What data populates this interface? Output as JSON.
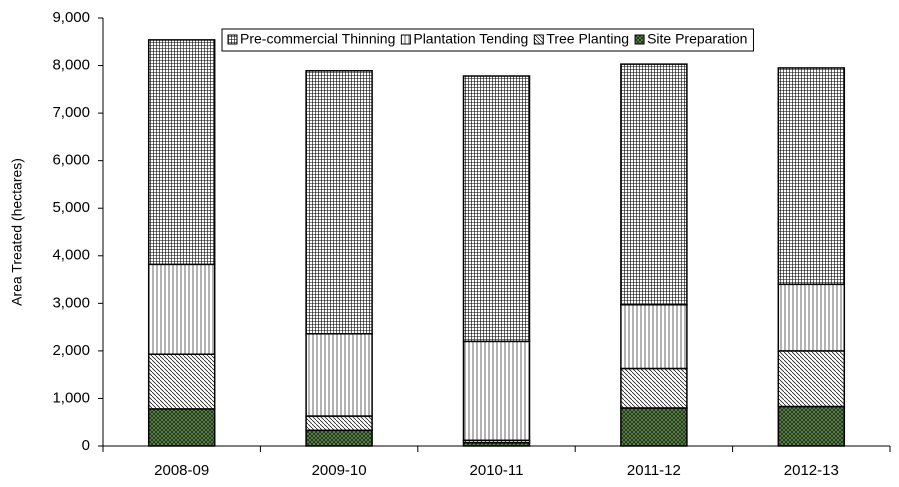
{
  "chart_data": {
    "type": "bar",
    "stacked": true,
    "y_label": "Area Treated (hectares)",
    "categories": [
      "2008-09",
      "2009-10",
      "2010-11",
      "2011-12",
      "2012-13"
    ],
    "series": [
      {
        "name": "Site Preparation",
        "color": "#5f8a4c",
        "values": [
          780,
          330,
          70,
          800,
          830
        ]
      },
      {
        "name": "Tree Planting",
        "color": "#000000",
        "values": [
          1150,
          300,
          50,
          830,
          1170
        ]
      },
      {
        "name": "Plantation Tending",
        "color": "#000000",
        "values": [
          1890,
          1730,
          2080,
          1340,
          1400
        ]
      },
      {
        "name": "Pre-commercial Thinning",
        "color": "#000000",
        "values": [
          4720,
          5530,
          5580,
          5060,
          4550
        ]
      }
    ],
    "ylim": [
      0,
      9000
    ],
    "yticks": [
      0,
      {
        "value": 1000,
        "label": "1,000"
      },
      {
        "value": 2000,
        "label": "2,000"
      },
      {
        "value": 3000,
        "label": "3,000"
      },
      {
        "value": 4000,
        "label": "4,000"
      },
      {
        "value": 5000,
        "label": "5,000"
      },
      {
        "value": 6000,
        "label": "6,000"
      },
      {
        "value": 7000,
        "label": "7,000"
      },
      {
        "value": 8000,
        "label": "8,000"
      },
      {
        "value": 9000,
        "label": "9,000"
      }
    ],
    "legend": "top"
  }
}
